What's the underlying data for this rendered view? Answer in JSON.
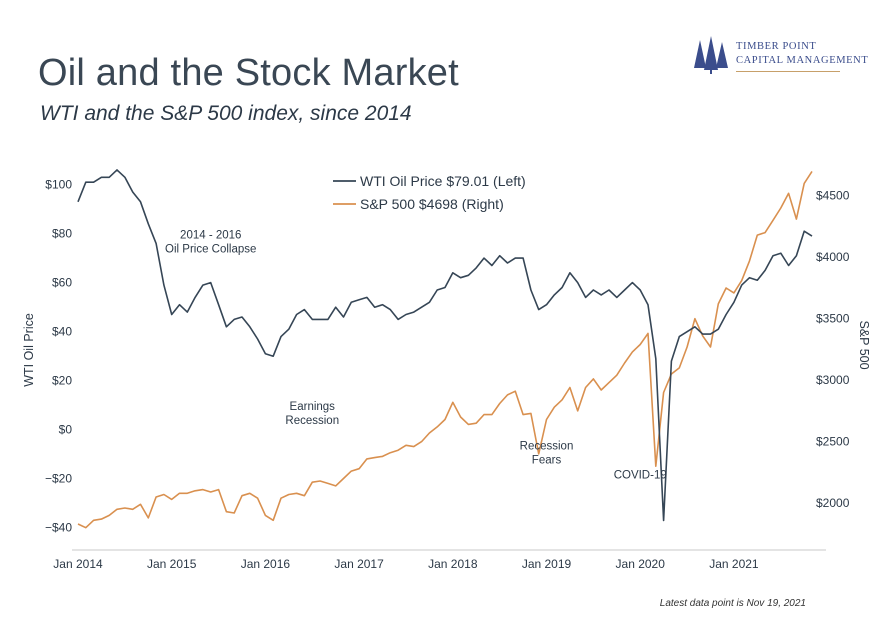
{
  "header": {
    "title": "Oil and the Stock Market",
    "subtitle": "WTI and the S&P 500 index, since 2014"
  },
  "logo": {
    "line1": "Timber Point",
    "line2": "Capital Management",
    "icon": "pine-trees-icon",
    "color": "#3b4d8c",
    "accent": "#c7a06a"
  },
  "footnote": "Latest data point is Nov 19, 2021",
  "chart_data": {
    "type": "line",
    "x_ticks": [
      "Jan 2014",
      "Jan 2015",
      "Jan 2016",
      "Jan 2017",
      "Jan 2018",
      "Jan 2019",
      "Jan 2020",
      "Jan 2021"
    ],
    "xlim": [
      "2014-01",
      "2021-11"
    ],
    "left_axis": {
      "label": "WTI Oil Price",
      "ylim": [
        -45,
        108
      ],
      "ticks": [
        100,
        80,
        60,
        40,
        20,
        0,
        -20,
        -40
      ],
      "tick_labels": [
        "$100",
        "$80",
        "$60",
        "$40",
        "$20",
        "$0",
        "−$20",
        "−$40"
      ]
    },
    "right_axis": {
      "label": "S&P 500",
      "ylim": [
        1700,
        4750
      ],
      "ticks": [
        4500,
        4000,
        3500,
        3000,
        2500,
        2000
      ],
      "tick_labels": [
        "$4500",
        "$4000",
        "$3500",
        "$3000",
        "$2500",
        "$2000"
      ]
    },
    "series": [
      {
        "name": "WTI Oil Price $79.01 (Left)",
        "axis": "left",
        "color": "#364656",
        "points": [
          [
            "2014-01",
            93
          ],
          [
            "2014-02",
            101
          ],
          [
            "2014-03",
            101
          ],
          [
            "2014-04",
            103
          ],
          [
            "2014-05",
            103
          ],
          [
            "2014-06",
            106
          ],
          [
            "2014-07",
            103
          ],
          [
            "2014-08",
            97
          ],
          [
            "2014-09",
            93
          ],
          [
            "2014-10",
            84
          ],
          [
            "2014-11",
            76
          ],
          [
            "2014-12",
            59
          ],
          [
            "2015-01",
            47
          ],
          [
            "2015-02",
            51
          ],
          [
            "2015-03",
            48
          ],
          [
            "2015-04",
            54
          ],
          [
            "2015-05",
            59
          ],
          [
            "2015-06",
            60
          ],
          [
            "2015-07",
            51
          ],
          [
            "2015-08",
            42
          ],
          [
            "2015-09",
            45
          ],
          [
            "2015-10",
            46
          ],
          [
            "2015-11",
            42
          ],
          [
            "2015-12",
            37
          ],
          [
            "2016-01",
            31
          ],
          [
            "2016-02",
            30
          ],
          [
            "2016-03",
            38
          ],
          [
            "2016-04",
            41
          ],
          [
            "2016-05",
            47
          ],
          [
            "2016-06",
            49
          ],
          [
            "2016-07",
            45
          ],
          [
            "2016-08",
            45
          ],
          [
            "2016-09",
            45
          ],
          [
            "2016-10",
            50
          ],
          [
            "2016-11",
            46
          ],
          [
            "2016-12",
            52
          ],
          [
            "2017-01",
            53
          ],
          [
            "2017-02",
            54
          ],
          [
            "2017-03",
            50
          ],
          [
            "2017-04",
            51
          ],
          [
            "2017-05",
            49
          ],
          [
            "2017-06",
            45
          ],
          [
            "2017-07",
            47
          ],
          [
            "2017-08",
            48
          ],
          [
            "2017-09",
            50
          ],
          [
            "2017-10",
            52
          ],
          [
            "2017-11",
            57
          ],
          [
            "2017-12",
            58
          ],
          [
            "2018-01",
            64
          ],
          [
            "2018-02",
            62
          ],
          [
            "2018-03",
            63
          ],
          [
            "2018-04",
            66
          ],
          [
            "2018-05",
            70
          ],
          [
            "2018-06",
            67
          ],
          [
            "2018-07",
            71
          ],
          [
            "2018-08",
            68
          ],
          [
            "2018-09",
            70
          ],
          [
            "2018-10",
            70
          ],
          [
            "2018-11",
            57
          ],
          [
            "2018-12",
            49
          ],
          [
            "2019-01",
            51
          ],
          [
            "2019-02",
            55
          ],
          [
            "2019-03",
            58
          ],
          [
            "2019-04",
            64
          ],
          [
            "2019-05",
            60
          ],
          [
            "2019-06",
            54
          ],
          [
            "2019-07",
            57
          ],
          [
            "2019-08",
            55
          ],
          [
            "2019-09",
            57
          ],
          [
            "2019-10",
            54
          ],
          [
            "2019-11",
            57
          ],
          [
            "2019-12",
            60
          ],
          [
            "2020-01",
            57
          ],
          [
            "2020-02",
            51
          ],
          [
            "2020-03",
            29
          ],
          [
            "2020-04",
            -37
          ],
          [
            "2020-05",
            28
          ],
          [
            "2020-06",
            38
          ],
          [
            "2020-07",
            40
          ],
          [
            "2020-08",
            42
          ],
          [
            "2020-09",
            39
          ],
          [
            "2020-10",
            39
          ],
          [
            "2020-11",
            41
          ],
          [
            "2020-12",
            47
          ],
          [
            "2021-01",
            52
          ],
          [
            "2021-02",
            59
          ],
          [
            "2021-03",
            62
          ],
          [
            "2021-04",
            61
          ],
          [
            "2021-05",
            65
          ],
          [
            "2021-06",
            71
          ],
          [
            "2021-07",
            72
          ],
          [
            "2021-08",
            67
          ],
          [
            "2021-09",
            71
          ],
          [
            "2021-10",
            81
          ],
          [
            "2021-11",
            79
          ]
        ]
      },
      {
        "name": "S&P 500 $4698 (Right)",
        "axis": "right",
        "color": "#d9904f",
        "points": [
          [
            "2014-01",
            1830
          ],
          [
            "2014-02",
            1800
          ],
          [
            "2014-03",
            1860
          ],
          [
            "2014-04",
            1870
          ],
          [
            "2014-05",
            1900
          ],
          [
            "2014-06",
            1950
          ],
          [
            "2014-07",
            1960
          ],
          [
            "2014-08",
            1950
          ],
          [
            "2014-09",
            1990
          ],
          [
            "2014-10",
            1880
          ],
          [
            "2014-11",
            2050
          ],
          [
            "2014-12",
            2070
          ],
          [
            "2015-01",
            2030
          ],
          [
            "2015-02",
            2080
          ],
          [
            "2015-03",
            2080
          ],
          [
            "2015-04",
            2100
          ],
          [
            "2015-05",
            2110
          ],
          [
            "2015-06",
            2090
          ],
          [
            "2015-07",
            2110
          ],
          [
            "2015-08",
            1930
          ],
          [
            "2015-09",
            1920
          ],
          [
            "2015-10",
            2060
          ],
          [
            "2015-11",
            2080
          ],
          [
            "2015-12",
            2040
          ],
          [
            "2016-01",
            1900
          ],
          [
            "2016-02",
            1860
          ],
          [
            "2016-03",
            2040
          ],
          [
            "2016-04",
            2070
          ],
          [
            "2016-05",
            2080
          ],
          [
            "2016-06",
            2060
          ],
          [
            "2016-07",
            2170
          ],
          [
            "2016-08",
            2180
          ],
          [
            "2016-09",
            2160
          ],
          [
            "2016-10",
            2140
          ],
          [
            "2016-11",
            2200
          ],
          [
            "2016-12",
            2260
          ],
          [
            "2017-01",
            2280
          ],
          [
            "2017-02",
            2360
          ],
          [
            "2017-03",
            2370
          ],
          [
            "2017-04",
            2380
          ],
          [
            "2017-05",
            2410
          ],
          [
            "2017-06",
            2430
          ],
          [
            "2017-07",
            2470
          ],
          [
            "2017-08",
            2460
          ],
          [
            "2017-09",
            2500
          ],
          [
            "2017-10",
            2570
          ],
          [
            "2017-11",
            2620
          ],
          [
            "2017-12",
            2680
          ],
          [
            "2018-01",
            2820
          ],
          [
            "2018-02",
            2700
          ],
          [
            "2018-03",
            2640
          ],
          [
            "2018-04",
            2650
          ],
          [
            "2018-05",
            2720
          ],
          [
            "2018-06",
            2720
          ],
          [
            "2018-07",
            2810
          ],
          [
            "2018-08",
            2880
          ],
          [
            "2018-09",
            2910
          ],
          [
            "2018-10",
            2720
          ],
          [
            "2018-11",
            2730
          ],
          [
            "2018-12",
            2400
          ],
          [
            "2019-01",
            2680
          ],
          [
            "2019-02",
            2780
          ],
          [
            "2019-03",
            2840
          ],
          [
            "2019-04",
            2940
          ],
          [
            "2019-05",
            2750
          ],
          [
            "2019-06",
            2940
          ],
          [
            "2019-07",
            3010
          ],
          [
            "2019-08",
            2920
          ],
          [
            "2019-09",
            2980
          ],
          [
            "2019-10",
            3040
          ],
          [
            "2019-11",
            3140
          ],
          [
            "2019-12",
            3230
          ],
          [
            "2020-01",
            3290
          ],
          [
            "2020-02",
            3380
          ],
          [
            "2020-03",
            2300
          ],
          [
            "2020-04",
            2900
          ],
          [
            "2020-05",
            3050
          ],
          [
            "2020-06",
            3100
          ],
          [
            "2020-07",
            3270
          ],
          [
            "2020-08",
            3500
          ],
          [
            "2020-09",
            3360
          ],
          [
            "2020-10",
            3270
          ],
          [
            "2020-11",
            3620
          ],
          [
            "2020-12",
            3750
          ],
          [
            "2021-01",
            3710
          ],
          [
            "2021-02",
            3810
          ],
          [
            "2021-03",
            3970
          ],
          [
            "2021-04",
            4180
          ],
          [
            "2021-05",
            4200
          ],
          [
            "2021-06",
            4300
          ],
          [
            "2021-07",
            4400
          ],
          [
            "2021-08",
            4520
          ],
          [
            "2021-09",
            4310
          ],
          [
            "2021-10",
            4600
          ],
          [
            "2021-11",
            4698
          ]
        ]
      }
    ],
    "annotations": [
      {
        "lines": [
          "2014 - 2016",
          "Oil Price Collapse"
        ],
        "at": [
          "2015-06",
          78
        ]
      },
      {
        "lines": [
          "Earnings",
          "Recession"
        ],
        "at": [
          "2016-07",
          8
        ]
      },
      {
        "lines": [
          "Recession",
          "Fears"
        ],
        "at": [
          "2019-01",
          -8
        ]
      },
      {
        "lines": [
          "COVID-19"
        ],
        "at": [
          "2020-01",
          -20
        ]
      }
    ]
  }
}
